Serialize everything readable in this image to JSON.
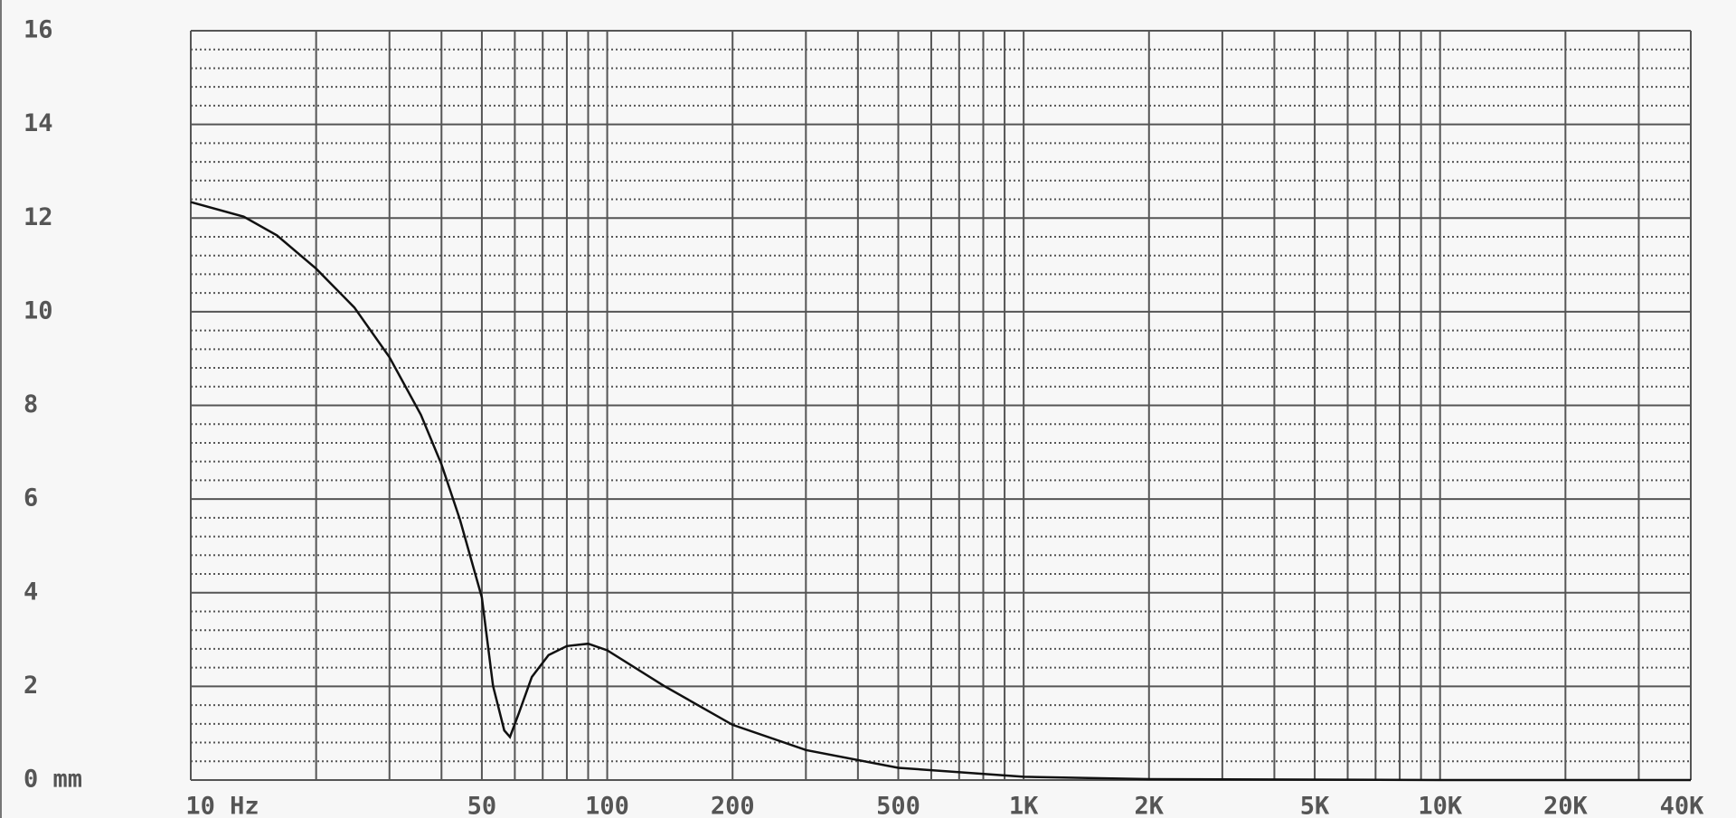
{
  "chart_data": {
    "type": "line",
    "x": [
      10,
      13.4,
      16.1,
      20,
      24.7,
      30,
      35.7,
      40,
      44.3,
      50,
      53.2,
      56.6,
      58.4,
      61.3,
      65.9,
      72.3,
      80,
      90,
      100,
      137,
      200,
      300,
      500,
      1000,
      2000,
      10000,
      40000
    ],
    "series": [
      {
        "color": "#111111",
        "values": [
          12.34,
          12.03,
          11.63,
          10.92,
          10.09,
          9.03,
          7.8,
          6.74,
          5.56,
          3.9,
          2.01,
          1.06,
          0.92,
          1.42,
          2.2,
          2.67,
          2.86,
          2.91,
          2.77,
          2.01,
          1.18,
          0.64,
          0.26,
          0.07,
          0.02,
          0,
          0
        ]
      }
    ],
    "xlim": [
      10,
      40000
    ],
    "xscale": "log",
    "xticks": [
      {
        "value": 10,
        "label": "10 Hz"
      },
      50,
      100,
      200,
      500,
      {
        "value": 1000,
        "label": "1K"
      },
      {
        "value": 2000,
        "label": "2K"
      },
      {
        "value": 5000,
        "label": "5K"
      },
      {
        "value": 10000,
        "label": "10K"
      },
      {
        "value": 20000,
        "label": "20K"
      },
      {
        "value": 40000,
        "label": "40K"
      }
    ],
    "xgrid": [
      10,
      20,
      30,
      40,
      50,
      60,
      70,
      80,
      90,
      100,
      200,
      300,
      400,
      500,
      600,
      700,
      800,
      900,
      1000,
      2000,
      3000,
      4000,
      5000,
      6000,
      7000,
      8000,
      9000,
      10000,
      20000,
      30000,
      40000
    ],
    "ylim": [
      0,
      16
    ],
    "yticks": [
      {
        "value": 0,
        "label": "0 mm"
      },
      2,
      4,
      6,
      8,
      10,
      12,
      14,
      16
    ],
    "grid": true
  }
}
